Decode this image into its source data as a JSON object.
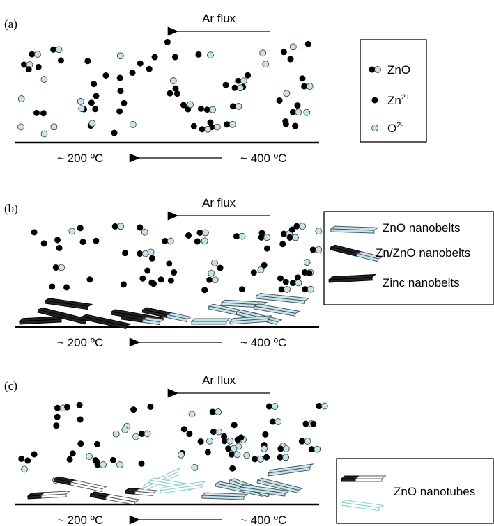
{
  "panels": [
    {
      "label": "(a)",
      "flow": "Ar flux",
      "temp_low": "~ 200 ºC",
      "temp_high": "~ 400 ºC",
      "legend": [
        {
          "text": "ZnO"
        },
        {
          "text": "Zn",
          "sup": "2+"
        },
        {
          "text": "O",
          "sup": "2-"
        }
      ]
    },
    {
      "label": "(b)",
      "flow": "Ar flux",
      "temp_low": "~ 200 ºC",
      "temp_high": "~ 400 ºC",
      "legend": [
        {
          "text": "ZnO nanobelts"
        },
        {
          "text": "Zn/ZnO nanobelts"
        },
        {
          "text": "Zinc nanobelts"
        }
      ]
    },
    {
      "label": "(c)",
      "flow": "Ar flux",
      "temp_low": "~ 200 ºC",
      "temp_high": "~ 400 ºC",
      "legend": [
        {
          "text": "ZnO nanotubes"
        }
      ]
    }
  ]
}
